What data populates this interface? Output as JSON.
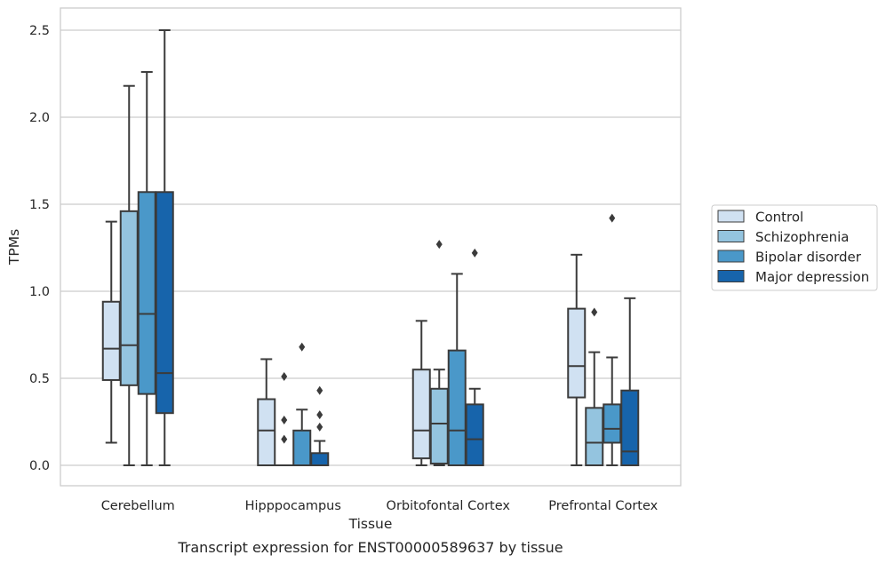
{
  "chart_data": {
    "type": "boxplot",
    "caption": "Transcript expression for ENST00000589637 by tissue",
    "xlabel": "Tissue",
    "ylabel": "TPMs",
    "ylim": [
      -0.12,
      2.62
    ],
    "yticks": [
      "0.0",
      "0.5",
      "1.0",
      "1.5",
      "2.0",
      "2.5"
    ],
    "ytick_values": [
      0,
      0.5,
      1.0,
      1.5,
      2.0,
      2.5
    ],
    "grid": "horizontal",
    "legend_position": "right",
    "categories": [
      "Cerebellum",
      "Hipppocampus",
      "Orbitofontal Cortex",
      "Prefrontal Cortex"
    ],
    "series": [
      {
        "name": "Control",
        "color": "#d0e1f2",
        "boxes": [
          {
            "whisker_low": 0.13,
            "q1": 0.49,
            "median": 0.67,
            "q3": 0.94,
            "whisker_high": 1.4,
            "outliers": []
          },
          {
            "whisker_low": 0.0,
            "q1": 0.0,
            "median": 0.2,
            "q3": 0.38,
            "whisker_high": 0.61,
            "outliers": []
          },
          {
            "whisker_low": 0.0,
            "q1": 0.04,
            "median": 0.2,
            "q3": 0.55,
            "whisker_high": 0.83,
            "outliers": []
          },
          {
            "whisker_low": 0.0,
            "q1": 0.39,
            "median": 0.57,
            "q3": 0.9,
            "whisker_high": 1.21,
            "outliers": []
          }
        ]
      },
      {
        "name": "Schizophrenia",
        "color": "#94c4df",
        "boxes": [
          {
            "whisker_low": 0.0,
            "q1": 0.46,
            "median": 0.69,
            "q3": 1.46,
            "whisker_high": 2.18,
            "outliers": []
          },
          {
            "whisker_low": 0.0,
            "q1": 0.0,
            "median": 0.0,
            "q3": 0.0,
            "whisker_high": 0.0,
            "outliers": [
              0.51,
              0.26,
              0.15
            ]
          },
          {
            "whisker_low": 0.0,
            "q1": 0.01,
            "median": 0.24,
            "q3": 0.44,
            "whisker_high": 0.55,
            "outliers": [
              1.27
            ]
          },
          {
            "whisker_low": 0.0,
            "q1": 0.0,
            "median": 0.13,
            "q3": 0.33,
            "whisker_high": 0.65,
            "outliers": [
              0.88
            ]
          }
        ]
      },
      {
        "name": "Bipolar disorder",
        "color": "#4a98c9",
        "boxes": [
          {
            "whisker_low": 0.0,
            "q1": 0.41,
            "median": 0.87,
            "q3": 1.57,
            "whisker_high": 2.26,
            "outliers": []
          },
          {
            "whisker_low": 0.0,
            "q1": 0.0,
            "median": 0.0,
            "q3": 0.2,
            "whisker_high": 0.32,
            "outliers": [
              0.68
            ]
          },
          {
            "whisker_low": 0.0,
            "q1": 0.0,
            "median": 0.2,
            "q3": 0.66,
            "whisker_high": 1.1,
            "outliers": []
          },
          {
            "whisker_low": 0.0,
            "q1": 0.13,
            "median": 0.21,
            "q3": 0.35,
            "whisker_high": 0.62,
            "outliers": [
              1.42
            ]
          }
        ]
      },
      {
        "name": "Major depression",
        "color": "#1764ab",
        "boxes": [
          {
            "whisker_low": 0.0,
            "q1": 0.3,
            "median": 0.53,
            "q3": 1.57,
            "whisker_high": 2.5,
            "outliers": []
          },
          {
            "whisker_low": 0.0,
            "q1": 0.0,
            "median": 0.0,
            "q3": 0.07,
            "whisker_high": 0.14,
            "outliers": [
              0.43,
              0.29,
              0.22
            ]
          },
          {
            "whisker_low": 0.0,
            "q1": 0.0,
            "median": 0.15,
            "q3": 0.35,
            "whisker_high": 0.44,
            "outliers": [
              1.22
            ]
          },
          {
            "whisker_low": 0.0,
            "q1": 0.0,
            "median": 0.08,
            "q3": 0.43,
            "whisker_high": 0.96,
            "outliers": []
          }
        ]
      }
    ]
  }
}
